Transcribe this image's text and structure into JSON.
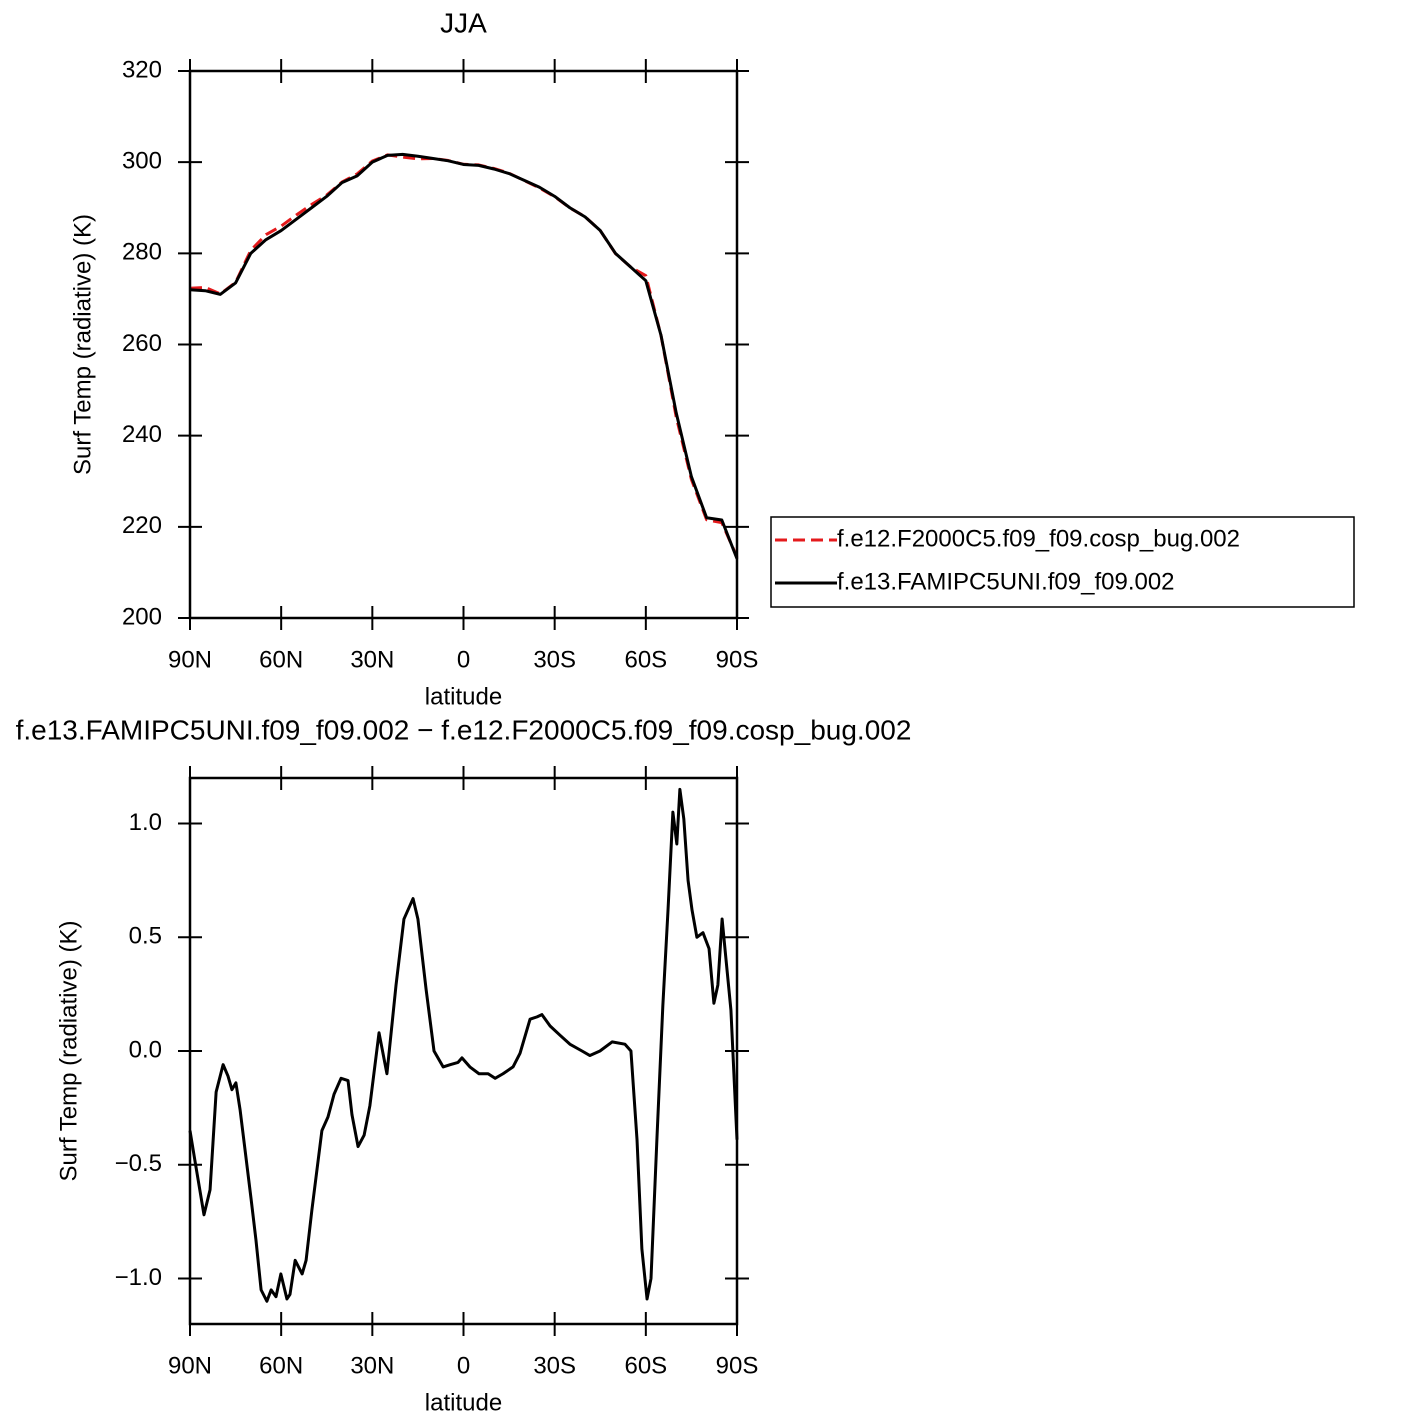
{
  "chart_data": [
    {
      "type": "line",
      "title": "JJA",
      "xlabel": "latitude",
      "ylabel": "Surf Temp (radiative) (K)",
      "x": [
        90,
        85,
        80,
        75,
        70,
        65,
        60,
        55,
        50,
        45,
        40,
        35,
        30,
        25,
        20,
        15,
        10,
        5,
        0,
        -5,
        -10,
        -15,
        -20,
        -25,
        -30,
        -35,
        -40,
        -45,
        -50,
        -55,
        -60,
        -65,
        -70,
        -75,
        -80,
        -85,
        -90
      ],
      "series": [
        {
          "name": "f.e12.F2000C5.f09_f09.cosp_bug.002",
          "color": "#e41a1c",
          "line_style": "dashed",
          "values": [
            272.35,
            272.52,
            271.1,
            273.64,
            280.65,
            284.1,
            285.98,
            288.42,
            290.7,
            292.79,
            295.62,
            297.42,
            300.24,
            301.6,
            301.12,
            300.72,
            300.8,
            300.36,
            299.53,
            299.4,
            298.62,
            297.58,
            295.95,
            294.35,
            292.41,
            289.97,
            288.02,
            285,
            279.96,
            277,
            275.09,
            261.95,
            244.09,
            230.38,
            221.55,
            220.92,
            213.39
          ]
        },
        {
          "name": "f.e13.FAMIPC5UNI.f09_f09.002",
          "color": "#000000",
          "line_style": "solid",
          "values": [
            272,
            271.8,
            271,
            273.5,
            280,
            283,
            285,
            287.5,
            290,
            292.5,
            295.5,
            297,
            300,
            301.5,
            301.7,
            301.3,
            300.8,
            300.3,
            299.5,
            299.3,
            298.5,
            297.5,
            296,
            294.5,
            292.5,
            290,
            288,
            285,
            280,
            277,
            274,
            262,
            245,
            231,
            222,
            221.5,
            213
          ]
        }
      ],
      "xlim": [
        90,
        -90
      ],
      "xticks": [
        {
          "value": 90,
          "label": "90N"
        },
        {
          "value": 60,
          "label": "60N"
        },
        {
          "value": 30,
          "label": "30N"
        },
        0,
        {
          "value": -30,
          "label": "30S"
        },
        {
          "value": -60,
          "label": "60S"
        },
        {
          "value": -90,
          "label": "90S"
        }
      ],
      "ylim": [
        200,
        320
      ],
      "yticks": [
        200,
        220,
        240,
        260,
        280,
        300,
        320
      ],
      "legend": "outside-right",
      "grid": false
    },
    {
      "type": "line",
      "title": "f.e13.FAMIPC5UNI.f09_f09.002 − f.e12.F2000C5.f09_f09.cosp_bug.002",
      "xlabel": "latitude",
      "ylabel": "Surf Temp (radiative) (K)",
      "x": [
        90,
        88.4,
        85.4,
        83.4,
        81.4,
        79.1,
        77.5,
        76.2,
        74.9,
        73.5,
        69.9,
        68.3,
        66.6,
        64.7,
        63.3,
        61.7,
        60.1,
        58.1,
        57.1,
        55.4,
        53.1,
        51.8,
        49.9,
        46.6,
        44.6,
        42.6,
        40.3,
        38,
        36.7,
        34.7,
        32.7,
        30.8,
        27.8,
        25.2,
        22.2,
        19.6,
        16.6,
        15,
        12.3,
        9.7,
        6.7,
        4.4,
        1.8,
        0.5,
        -2.1,
        -5.1,
        -8.1,
        -10.4,
        -13,
        -16.3,
        -18.6,
        -21.9,
        -24.2,
        -25.8,
        -28.5,
        -31.7,
        -35,
        -39,
        -41.6,
        -44.9,
        -48.9,
        -53.1,
        -55.1,
        -57.1,
        -58.7,
        -60.4,
        -61.7,
        -63.7,
        -65.6,
        -67.3,
        -68.9,
        -70.2,
        -71.2,
        -72.5,
        -73.9,
        -75.2,
        -76.8,
        -78.8,
        -80.8,
        -82.4,
        -83.7,
        -85.1,
        -86.4,
        -88,
        -90
      ],
      "color": "#000000",
      "values": [
        -0.35,
        -0.48,
        -0.72,
        -0.61,
        -0.18,
        -0.06,
        -0.11,
        -0.17,
        -0.14,
        -0.26,
        -0.65,
        -0.83,
        -1.05,
        -1.1,
        -1.05,
        -1.08,
        -0.98,
        -1.09,
        -1.07,
        -0.92,
        -0.98,
        -0.92,
        -0.7,
        -0.35,
        -0.29,
        -0.19,
        -0.12,
        -0.13,
        -0.28,
        -0.42,
        -0.37,
        -0.24,
        0.08,
        -0.1,
        0.29,
        0.58,
        0.67,
        0.58,
        0.27,
        0,
        -0.07,
        -0.06,
        -0.05,
        -0.03,
        -0.07,
        -0.1,
        -0.1,
        -0.12,
        -0.1,
        -0.07,
        -0.01,
        0.14,
        0.15,
        0.16,
        0.11,
        0.07,
        0.03,
        0,
        -0.02,
        0,
        0.04,
        0.03,
        0,
        -0.39,
        -0.87,
        -1.09,
        -1,
        -0.37,
        0.2,
        0.62,
        1.05,
        0.91,
        1.15,
        1.02,
        0.75,
        0.62,
        0.5,
        0.52,
        0.45,
        0.21,
        0.29,
        0.58,
        0.4,
        0.18,
        -0.39
      ],
      "xlim": [
        90,
        -90
      ],
      "xticks": [
        {
          "value": 90,
          "label": "90N"
        },
        {
          "value": 60,
          "label": "60N"
        },
        {
          "value": 30,
          "label": "30N"
        },
        0,
        {
          "value": -30,
          "label": "30S"
        },
        {
          "value": -60,
          "label": "60S"
        },
        {
          "value": -90,
          "label": "90S"
        }
      ],
      "ylim": [
        -1.2,
        1.2
      ],
      "yticks": [
        {
          "value": -1,
          "label": "−1.0"
        },
        {
          "value": -0.5,
          "label": "−0.5"
        },
        {
          "value": 0,
          "label": "0.0"
        },
        0.5,
        {
          "value": 1,
          "label": "1.0"
        }
      ],
      "grid": false
    }
  ]
}
